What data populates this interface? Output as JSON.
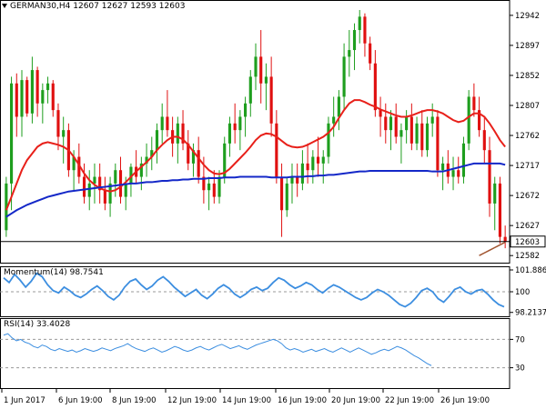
{
  "main_panel": {
    "symbol": "GERMAN30,H4",
    "ohlc": {
      "open": "12607",
      "high": "12627",
      "low": "12593",
      "close": "12603"
    }
  },
  "momentum_panel": {
    "label": "Momentum(14) 98.7541"
  },
  "rsi_panel": {
    "label": "RSI(14) 33.4028"
  },
  "colors": {
    "bull": "#1e9e1e",
    "bear": "#e01010",
    "sma_short": "#e8201a",
    "sma_long": "#1428c8",
    "sma_200": "#a0522d",
    "indicator": "#3c8ee0",
    "grid": "#ffffff",
    "axis": "#000000"
  },
  "chart_data": [
    {
      "type": "candlestick",
      "title": "GERMAN30,H4 12607 12627 12593 12603",
      "yticks": [
        12582,
        12627,
        12672,
        12717,
        12762,
        12807,
        12852,
        12897,
        12942
      ],
      "ylim": [
        12570,
        12965
      ],
      "current_price": "12603",
      "xticks": [
        "1 Jun 2017",
        "6 Jun 19:00",
        "8 Jun 19:00",
        "12 Jun 19:00",
        "14 Jun 19:00",
        "16 Jun 19:00",
        "20 Jun 19:00",
        "22 Jun 19:00",
        "26 Jun 19:00"
      ],
      "candles": [
        [
          12620,
          12700,
          12610,
          12690
        ],
        [
          12690,
          12850,
          12650,
          12840
        ],
        [
          12840,
          12855,
          12760,
          12790
        ],
        [
          12790,
          12860,
          12760,
          12845
        ],
        [
          12845,
          12850,
          12790,
          12795
        ],
        [
          12795,
          12880,
          12780,
          12860
        ],
        [
          12860,
          12865,
          12790,
          12810
        ],
        [
          12810,
          12840,
          12780,
          12830
        ],
        [
          12830,
          12850,
          12810,
          12840
        ],
        [
          12840,
          12845,
          12790,
          12800
        ],
        [
          12800,
          12810,
          12740,
          12760
        ],
        [
          12760,
          12790,
          12720,
          12770
        ],
        [
          12770,
          12780,
          12700,
          12710
        ],
        [
          12710,
          12740,
          12680,
          12730
        ],
        [
          12730,
          12750,
          12690,
          12700
        ],
        [
          12700,
          12720,
          12660,
          12670
        ],
        [
          12670,
          12710,
          12650,
          12690
        ],
        [
          12690,
          12720,
          12660,
          12700
        ],
        [
          12700,
          12720,
          12660,
          12680
        ],
        [
          12680,
          12700,
          12650,
          12660
        ],
        [
          12660,
          12700,
          12640,
          12690
        ],
        [
          12690,
          12720,
          12670,
          12710
        ],
        [
          12710,
          12730,
          12660,
          12670
        ],
        [
          12670,
          12700,
          12650,
          12690
        ],
        [
          12690,
          12720,
          12670,
          12715
        ],
        [
          12715,
          12740,
          12690,
          12700
        ],
        [
          12700,
          12730,
          12680,
          12720
        ],
        [
          12720,
          12750,
          12700,
          12730
        ],
        [
          12730,
          12760,
          12710,
          12740
        ],
        [
          12740,
          12780,
          12720,
          12770
        ],
        [
          12770,
          12810,
          12750,
          12790
        ],
        [
          12790,
          12830,
          12760,
          12770
        ],
        [
          12770,
          12790,
          12730,
          12750
        ],
        [
          12750,
          12790,
          12720,
          12780
        ],
        [
          12780,
          12800,
          12740,
          12750
        ],
        [
          12750,
          12770,
          12710,
          12720
        ],
        [
          12720,
          12750,
          12700,
          12740
        ],
        [
          12740,
          12760,
          12690,
          12700
        ],
        [
          12700,
          12730,
          12660,
          12680
        ],
        [
          12680,
          12700,
          12650,
          12690
        ],
        [
          12690,
          12710,
          12660,
          12670
        ],
        [
          12670,
          12710,
          12660,
          12700
        ],
        [
          12700,
          12760,
          12690,
          12750
        ],
        [
          12750,
          12790,
          12730,
          12780
        ],
        [
          12780,
          12810,
          12750,
          12770
        ],
        [
          12770,
          12800,
          12740,
          12790
        ],
        [
          12790,
          12820,
          12760,
          12810
        ],
        [
          12810,
          12860,
          12790,
          12850
        ],
        [
          12850,
          12900,
          12830,
          12880
        ],
        [
          12880,
          12920,
          12810,
          12840
        ],
        [
          12840,
          12870,
          12800,
          12850
        ],
        [
          12850,
          12880,
          12760,
          12780
        ],
        [
          12780,
          12800,
          12690,
          12700
        ],
        [
          12700,
          12720,
          12610,
          12650
        ],
        [
          12650,
          12700,
          12640,
          12690
        ],
        [
          12690,
          12720,
          12660,
          12700
        ],
        [
          12700,
          12720,
          12670,
          12690
        ],
        [
          12690,
          12740,
          12680,
          12720
        ],
        [
          12720,
          12750,
          12690,
          12710
        ],
        [
          12710,
          12740,
          12690,
          12730
        ],
        [
          12730,
          12760,
          12700,
          12720
        ],
        [
          12720,
          12740,
          12690,
          12730
        ],
        [
          12730,
          12790,
          12720,
          12780
        ],
        [
          12780,
          12820,
          12760,
          12790
        ],
        [
          12790,
          12830,
          12770,
          12820
        ],
        [
          12820,
          12900,
          12800,
          12880
        ],
        [
          12880,
          12920,
          12850,
          12890
        ],
        [
          12890,
          12930,
          12860,
          12920
        ],
        [
          12920,
          12950,
          12900,
          12940
        ],
        [
          12940,
          12945,
          12880,
          12900
        ],
        [
          12900,
          12910,
          12860,
          12870
        ],
        [
          12870,
          12890,
          12790,
          12800
        ],
        [
          12800,
          12820,
          12760,
          12790
        ],
        [
          12790,
          12810,
          12750,
          12770
        ],
        [
          12770,
          12800,
          12740,
          12790
        ],
        [
          12790,
          12810,
          12750,
          12760
        ],
        [
          12760,
          12780,
          12720,
          12770
        ],
        [
          12770,
          12800,
          12750,
          12790
        ],
        [
          12790,
          12810,
          12740,
          12750
        ],
        [
          12750,
          12790,
          12740,
          12780
        ],
        [
          12780,
          12800,
          12730,
          12740
        ],
        [
          12740,
          12790,
          12730,
          12780
        ],
        [
          12780,
          12810,
          12760,
          12790
        ],
        [
          12790,
          12800,
          12700,
          12710
        ],
        [
          12710,
          12730,
          12680,
          12720
        ],
        [
          12720,
          12740,
          12690,
          12700
        ],
        [
          12700,
          12730,
          12680,
          12710
        ],
        [
          12710,
          12730,
          12690,
          12700
        ],
        [
          12700,
          12760,
          12690,
          12750
        ],
        [
          12750,
          12830,
          12740,
          12820
        ],
        [
          12820,
          12840,
          12790,
          12800
        ],
        [
          12800,
          12820,
          12760,
          12770
        ],
        [
          12770,
          12790,
          12720,
          12740
        ],
        [
          12740,
          12760,
          12640,
          12660
        ],
        [
          12660,
          12700,
          12620,
          12690
        ],
        [
          12690,
          12700,
          12600,
          12610
        ],
        [
          12610,
          12627,
          12593,
          12603
        ]
      ],
      "sma_short": [
        12650,
        12670,
        12690,
        12710,
        12725,
        12735,
        12745,
        12750,
        12752,
        12750,
        12748,
        12745,
        12740,
        12730,
        12718,
        12705,
        12695,
        12688,
        12683,
        12680,
        12678,
        12680,
        12685,
        12692,
        12700,
        12708,
        12715,
        12722,
        12730,
        12740,
        12748,
        12755,
        12760,
        12760,
        12756,
        12748,
        12738,
        12728,
        12718,
        12710,
        12705,
        12704,
        12706,
        12712,
        12720,
        12728,
        12736,
        12745,
        12755,
        12762,
        12765,
        12764,
        12760,
        12754,
        12748,
        12745,
        12744,
        12745,
        12748,
        12752,
        12756,
        12760,
        12766,
        12775,
        12788,
        12800,
        12810,
        12815,
        12815,
        12812,
        12808,
        12805,
        12801,
        12798,
        12795,
        12792,
        12790,
        12790,
        12792,
        12795,
        12798,
        12800,
        12800,
        12798,
        12795,
        12790,
        12785,
        12782,
        12784,
        12790,
        12795,
        12795,
        12790,
        12780,
        12768,
        12755,
        12745
      ],
      "sma_long": [
        12640,
        12645,
        12650,
        12654,
        12658,
        12661,
        12664,
        12667,
        12670,
        12672,
        12674,
        12676,
        12678,
        12679,
        12680,
        12681,
        12682,
        12683,
        12684,
        12685,
        12686,
        12687,
        12688,
        12689,
        12690,
        12690,
        12691,
        12692,
        12692,
        12693,
        12694,
        12694,
        12695,
        12695,
        12696,
        12696,
        12697,
        12697,
        12697,
        12698,
        12698,
        12698,
        12699,
        12699,
        12699,
        12700,
        12700,
        12700,
        12700,
        12700,
        12700,
        12699,
        12699,
        12699,
        12699,
        12700,
        12700,
        12700,
        12701,
        12701,
        12702,
        12702,
        12703,
        12703,
        12704,
        12705,
        12706,
        12707,
        12708,
        12708,
        12709,
        12709,
        12709,
        12709,
        12709,
        12709,
        12709,
        12709,
        12709,
        12709,
        12709,
        12709,
        12708,
        12708,
        12708,
        12710,
        12712,
        12714,
        12716,
        12718,
        12720,
        12720,
        12720,
        12720,
        12720,
        12720,
        12718
      ],
      "sma_200_visible": [
        12582,
        12586,
        12590,
        12594,
        12598,
        12602
      ]
    },
    {
      "type": "line",
      "title": "Momentum(14) 98.7541",
      "yticks": [
        "101.8862",
        "100",
        "98.2137"
      ],
      "ylim": [
        97.8,
        102.2
      ],
      "reference_level": 100,
      "values": [
        101.2,
        100.8,
        101.5,
        101.0,
        100.4,
        100.9,
        101.6,
        101.3,
        100.6,
        100.1,
        99.9,
        100.4,
        100.1,
        99.7,
        99.5,
        99.8,
        100.2,
        100.5,
        100.1,
        99.6,
        99.3,
        99.7,
        100.4,
        100.9,
        101.1,
        100.6,
        100.2,
        100.5,
        101.0,
        101.3,
        100.9,
        100.4,
        100.0,
        99.6,
        99.9,
        100.2,
        99.7,
        99.4,
        99.8,
        100.3,
        100.6,
        100.3,
        99.8,
        99.5,
        99.8,
        100.2,
        100.4,
        100.1,
        100.3,
        100.8,
        101.2,
        101.0,
        100.6,
        100.3,
        100.5,
        100.8,
        100.6,
        100.2,
        99.9,
        100.3,
        100.6,
        100.4,
        100.1,
        99.8,
        99.5,
        99.3,
        99.5,
        99.9,
        100.2,
        100.0,
        99.7,
        99.3,
        98.9,
        98.7,
        99.0,
        99.5,
        100.1,
        100.3,
        100.0,
        99.4,
        99.1,
        99.6,
        100.2,
        100.4,
        100.0,
        99.8,
        100.1,
        100.2,
        99.8,
        99.3,
        98.9,
        98.7
      ]
    },
    {
      "type": "line",
      "title": "RSI(14) 33.4028",
      "yticks": [
        "70",
        "30"
      ],
      "ylim": [
        0,
        100
      ],
      "levels": [
        70,
        30
      ],
      "values": [
        76,
        78,
        72,
        68,
        70,
        66,
        64,
        60,
        58,
        62,
        60,
        56,
        54,
        57,
        55,
        53,
        55,
        52,
        54,
        57,
        55,
        53,
        55,
        58,
        56,
        54,
        57,
        59,
        61,
        64,
        60,
        57,
        55,
        53,
        56,
        58,
        55,
        52,
        54,
        57,
        60,
        58,
        55,
        53,
        55,
        58,
        60,
        57,
        55,
        58,
        61,
        63,
        60,
        57,
        59,
        61,
        58,
        56,
        59,
        62,
        64,
        66,
        68,
        70,
        68,
        64,
        58,
        55,
        57,
        55,
        52,
        54,
        56,
        53,
        55,
        57,
        54,
        52,
        55,
        58,
        55,
        52,
        55,
        58,
        55,
        52,
        49,
        51,
        54,
        56,
        54,
        57,
        60,
        58,
        55,
        51,
        47,
        44,
        40,
        36,
        33
      ]
    }
  ]
}
